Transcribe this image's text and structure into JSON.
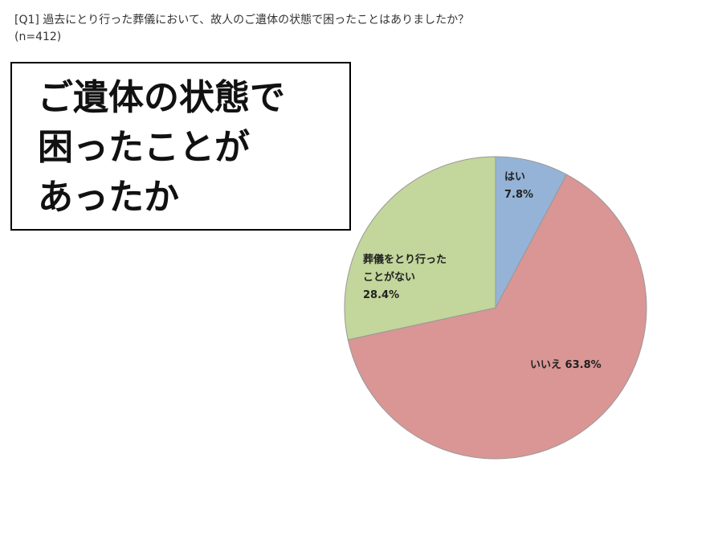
{
  "chart_data": {
    "type": "pie",
    "title": "[Q1] 過去にとり行った葬儀において、故人のご遺体の状態で困ったことはありましたか？",
    "subtitle": "(n=412)",
    "annotation": [
      "ご遺体の状態で",
      "困ったことが",
      "あったか"
    ],
    "categories": [
      "はい",
      "いいえ",
      "葬儀をとり行ったことがない"
    ],
    "values": [
      7.8,
      63.8,
      28.4
    ],
    "value_labels": [
      "7.8%",
      "63.8%",
      "28.4%"
    ],
    "colors": [
      "#95b3d7",
      "#d99694",
      "#c3d69b"
    ]
  }
}
